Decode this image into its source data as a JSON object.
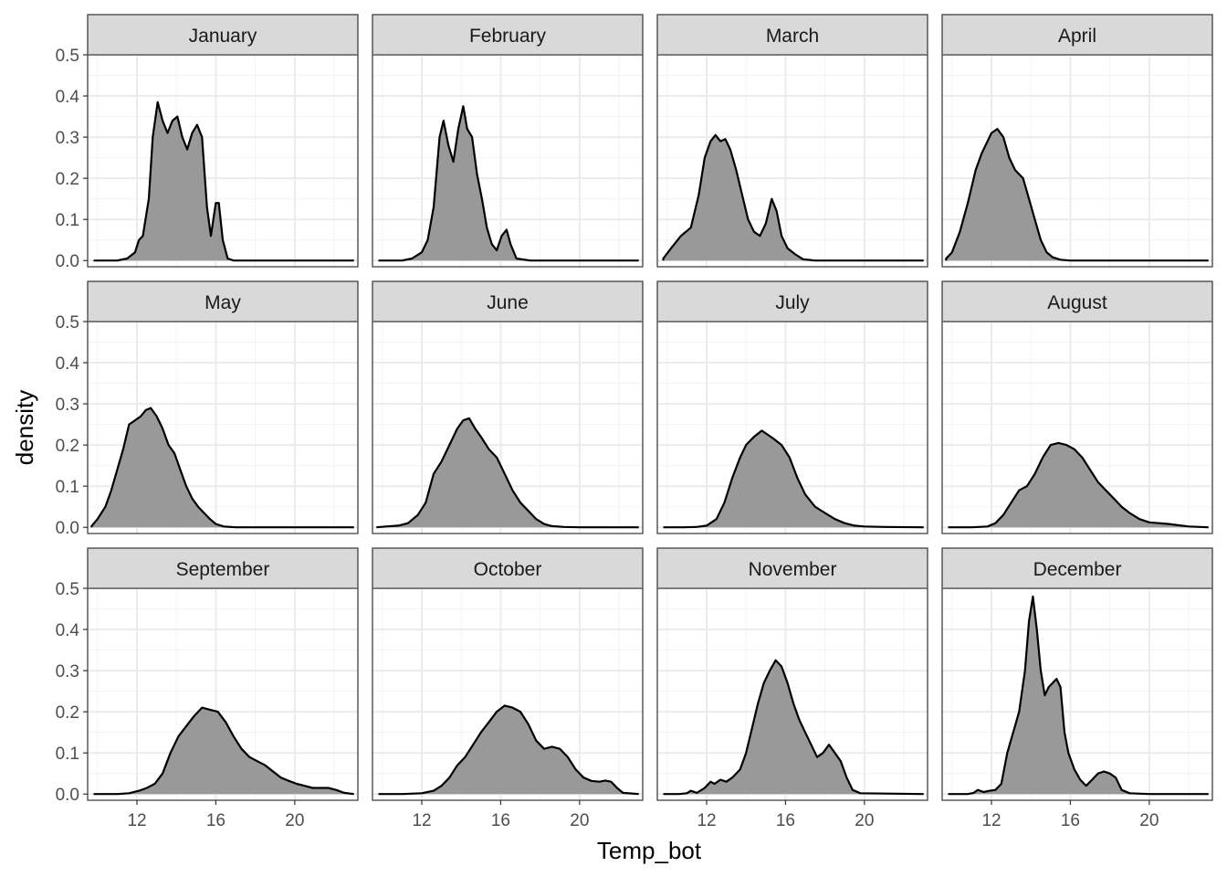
{
  "chart_data": {
    "type": "area",
    "facet_layout": "3x4",
    "xlabel": "Temp_bot",
    "ylabel": "density",
    "xlim": [
      9.5,
      23.2
    ],
    "ylim": [
      -0.015,
      0.5
    ],
    "x_ticks": [
      12,
      16,
      20
    ],
    "y_ticks": [
      0.0,
      0.1,
      0.2,
      0.3,
      0.4,
      0.5
    ],
    "y_tick_labels": [
      "0.0",
      "0.1",
      "0.2",
      "0.3",
      "0.4",
      "0.5"
    ],
    "grid": true,
    "fill_color": "#999999",
    "line_color": "#000000",
    "strip_color": "#d9d9d9",
    "panels": [
      {
        "label": "January",
        "x": [
          9.8,
          11.0,
          11.5,
          11.9,
          12.1,
          12.3,
          12.6,
          12.8,
          13.05,
          13.3,
          13.55,
          13.8,
          14.05,
          14.3,
          14.55,
          14.8,
          15.05,
          15.3,
          15.55,
          15.75,
          16.0,
          16.15,
          16.35,
          16.6,
          16.9,
          17.5,
          23.0
        ],
        "y": [
          0,
          0,
          0.005,
          0.02,
          0.05,
          0.06,
          0.15,
          0.3,
          0.385,
          0.34,
          0.31,
          0.34,
          0.35,
          0.3,
          0.27,
          0.31,
          0.33,
          0.3,
          0.13,
          0.06,
          0.14,
          0.14,
          0.05,
          0.005,
          0,
          0,
          0
        ]
      },
      {
        "label": "February",
        "x": [
          9.8,
          11.0,
          11.5,
          12.0,
          12.3,
          12.6,
          12.9,
          13.1,
          13.35,
          13.6,
          13.85,
          14.1,
          14.3,
          14.55,
          14.8,
          15.05,
          15.3,
          15.55,
          15.8,
          16.05,
          16.3,
          16.5,
          16.8,
          17.5,
          23.0
        ],
        "y": [
          0,
          0,
          0.005,
          0.02,
          0.05,
          0.13,
          0.3,
          0.34,
          0.28,
          0.24,
          0.32,
          0.375,
          0.32,
          0.3,
          0.21,
          0.15,
          0.08,
          0.04,
          0.025,
          0.06,
          0.075,
          0.04,
          0.005,
          0,
          0
        ],
        "yr": [
          0,
          0,
          0.005,
          0.02,
          0.05,
          0.13,
          0.27,
          0.34,
          0.28,
          0.24,
          0.31,
          0.378,
          0.31,
          0.3,
          0.21,
          0.14,
          0.08,
          0.04,
          0.025,
          0.06,
          0.075,
          0.04,
          0.005,
          0,
          0
        ]
      },
      {
        "label": "March",
        "x": [
          9.8,
          10.2,
          10.7,
          11.2,
          11.6,
          11.9,
          12.2,
          12.45,
          12.7,
          12.95,
          13.2,
          13.5,
          13.8,
          14.1,
          14.4,
          14.7,
          15.0,
          15.3,
          15.55,
          15.8,
          16.1,
          16.5,
          16.9,
          17.5,
          23.0
        ],
        "y": [
          0.005,
          0.03,
          0.06,
          0.08,
          0.16,
          0.25,
          0.29,
          0.305,
          0.29,
          0.295,
          0.27,
          0.22,
          0.16,
          0.1,
          0.07,
          0.06,
          0.09,
          0.15,
          0.12,
          0.06,
          0.03,
          0.015,
          0.003,
          0,
          0
        ]
      },
      {
        "label": "April",
        "x": [
          9.7,
          10.0,
          10.4,
          10.8,
          11.2,
          11.5,
          11.8,
          12.0,
          12.3,
          12.6,
          12.9,
          13.2,
          13.6,
          13.9,
          14.2,
          14.5,
          14.8,
          15.1,
          15.5,
          16.0,
          17.0,
          23.0
        ],
        "y": [
          0.005,
          0.02,
          0.07,
          0.14,
          0.22,
          0.26,
          0.29,
          0.31,
          0.32,
          0.3,
          0.25,
          0.22,
          0.2,
          0.15,
          0.1,
          0.05,
          0.02,
          0.008,
          0.002,
          0,
          0,
          0
        ]
      },
      {
        "label": "May",
        "x": [
          9.7,
          10.0,
          10.4,
          10.7,
          11.0,
          11.3,
          11.6,
          11.9,
          12.2,
          12.45,
          12.7,
          13.0,
          13.3,
          13.6,
          13.9,
          14.2,
          14.5,
          14.8,
          15.1,
          15.4,
          15.7,
          16.0,
          16.4,
          17.0,
          18.0,
          23.0
        ],
        "y": [
          0.003,
          0.02,
          0.05,
          0.09,
          0.14,
          0.19,
          0.25,
          0.26,
          0.27,
          0.285,
          0.29,
          0.27,
          0.24,
          0.2,
          0.18,
          0.14,
          0.1,
          0.07,
          0.05,
          0.035,
          0.02,
          0.008,
          0.002,
          0,
          0,
          0
        ]
      },
      {
        "label": "June",
        "x": [
          9.7,
          10.2,
          10.8,
          11.3,
          11.8,
          12.2,
          12.6,
          13.0,
          13.4,
          13.8,
          14.1,
          14.4,
          14.7,
          15.0,
          15.4,
          15.8,
          16.2,
          16.6,
          17.0,
          17.4,
          17.8,
          18.2,
          18.6,
          19.2,
          20.0,
          23.0
        ],
        "y": [
          0,
          0.002,
          0.004,
          0.01,
          0.03,
          0.06,
          0.13,
          0.16,
          0.2,
          0.24,
          0.26,
          0.265,
          0.24,
          0.22,
          0.19,
          0.17,
          0.13,
          0.09,
          0.06,
          0.04,
          0.02,
          0.008,
          0.003,
          0.001,
          0,
          0
        ]
      },
      {
        "label": "July",
        "x": [
          9.8,
          10.8,
          11.5,
          12.0,
          12.5,
          12.9,
          13.3,
          13.7,
          14.0,
          14.4,
          14.8,
          15.1,
          15.4,
          15.8,
          16.2,
          16.6,
          17.0,
          17.5,
          18.0,
          18.5,
          19.0,
          19.5,
          20.0,
          21.0,
          23.0
        ],
        "y": [
          0,
          0,
          0.001,
          0.004,
          0.02,
          0.06,
          0.12,
          0.17,
          0.2,
          0.22,
          0.235,
          0.225,
          0.215,
          0.2,
          0.17,
          0.12,
          0.08,
          0.05,
          0.035,
          0.02,
          0.01,
          0.004,
          0.002,
          0.001,
          0
        ]
      },
      {
        "label": "August",
        "x": [
          9.8,
          11.0,
          11.8,
          12.2,
          12.6,
          13.0,
          13.4,
          13.8,
          14.2,
          14.6,
          15.0,
          15.4,
          15.8,
          16.2,
          16.6,
          17.0,
          17.4,
          17.8,
          18.2,
          18.6,
          19.0,
          19.5,
          20.0,
          20.5,
          21.0,
          21.5,
          22.0,
          23.0
        ],
        "y": [
          0,
          0,
          0.002,
          0.01,
          0.03,
          0.06,
          0.09,
          0.1,
          0.13,
          0.17,
          0.2,
          0.205,
          0.2,
          0.19,
          0.17,
          0.14,
          0.11,
          0.09,
          0.07,
          0.05,
          0.035,
          0.02,
          0.012,
          0.01,
          0.008,
          0.005,
          0.002,
          0
        ]
      },
      {
        "label": "September",
        "x": [
          9.8,
          11.0,
          11.6,
          12.1,
          12.5,
          12.9,
          13.3,
          13.7,
          14.1,
          14.5,
          14.9,
          15.3,
          15.7,
          16.1,
          16.5,
          16.9,
          17.3,
          17.7,
          18.1,
          18.5,
          18.9,
          19.3,
          19.7,
          20.1,
          20.5,
          20.9,
          21.3,
          21.7,
          22.1,
          22.5,
          23.0
        ],
        "y": [
          0,
          0,
          0.002,
          0.008,
          0.015,
          0.025,
          0.05,
          0.1,
          0.14,
          0.165,
          0.19,
          0.21,
          0.205,
          0.2,
          0.175,
          0.14,
          0.11,
          0.09,
          0.08,
          0.07,
          0.055,
          0.04,
          0.032,
          0.025,
          0.02,
          0.015,
          0.015,
          0.015,
          0.01,
          0.003,
          0
        ]
      },
      {
        "label": "October",
        "x": [
          9.8,
          11.0,
          12.0,
          12.6,
          13.0,
          13.4,
          13.8,
          14.2,
          14.6,
          15.0,
          15.4,
          15.8,
          16.2,
          16.6,
          17.0,
          17.4,
          17.8,
          18.2,
          18.6,
          19.0,
          19.4,
          19.8,
          20.2,
          20.6,
          21.0,
          21.3,
          21.6,
          21.9,
          22.2,
          23.0
        ],
        "y": [
          0,
          0,
          0.002,
          0.008,
          0.02,
          0.04,
          0.07,
          0.09,
          0.12,
          0.15,
          0.175,
          0.2,
          0.215,
          0.21,
          0.2,
          0.17,
          0.13,
          0.11,
          0.115,
          0.11,
          0.09,
          0.06,
          0.04,
          0.032,
          0.03,
          0.033,
          0.03,
          0.015,
          0.003,
          0
        ]
      },
      {
        "label": "November",
        "x": [
          9.8,
          10.6,
          11.0,
          11.2,
          11.5,
          11.9,
          12.2,
          12.4,
          12.7,
          13.0,
          13.3,
          13.7,
          14.0,
          14.3,
          14.6,
          14.9,
          15.2,
          15.5,
          15.8,
          16.1,
          16.4,
          16.7,
          17.0,
          17.3,
          17.6,
          17.9,
          18.2,
          18.5,
          18.8,
          19.1,
          19.4,
          19.8,
          23.0
        ],
        "y": [
          0,
          0,
          0.002,
          0.008,
          0.003,
          0.015,
          0.03,
          0.025,
          0.035,
          0.03,
          0.04,
          0.06,
          0.1,
          0.16,
          0.22,
          0.27,
          0.3,
          0.325,
          0.31,
          0.27,
          0.22,
          0.18,
          0.15,
          0.12,
          0.09,
          0.1,
          0.12,
          0.1,
          0.08,
          0.04,
          0.01,
          0.002,
          0
        ]
      },
      {
        "label": "December",
        "x": [
          9.8,
          10.8,
          11.1,
          11.3,
          11.6,
          11.9,
          12.2,
          12.5,
          12.8,
          13.1,
          13.4,
          13.7,
          13.9,
          14.1,
          14.3,
          14.5,
          14.7,
          14.9,
          15.1,
          15.3,
          15.5,
          15.7,
          15.9,
          16.2,
          16.5,
          16.8,
          17.1,
          17.4,
          17.7,
          18.0,
          18.3,
          18.6,
          19.0,
          20.0,
          23.0
        ],
        "y": [
          0,
          0,
          0.003,
          0.01,
          0.005,
          0.008,
          0.01,
          0.025,
          0.1,
          0.15,
          0.2,
          0.3,
          0.42,
          0.48,
          0.4,
          0.3,
          0.24,
          0.26,
          0.27,
          0.28,
          0.26,
          0.15,
          0.1,
          0.06,
          0.035,
          0.02,
          0.035,
          0.05,
          0.055,
          0.05,
          0.04,
          0.01,
          0.002,
          0,
          0
        ]
      }
    ]
  }
}
